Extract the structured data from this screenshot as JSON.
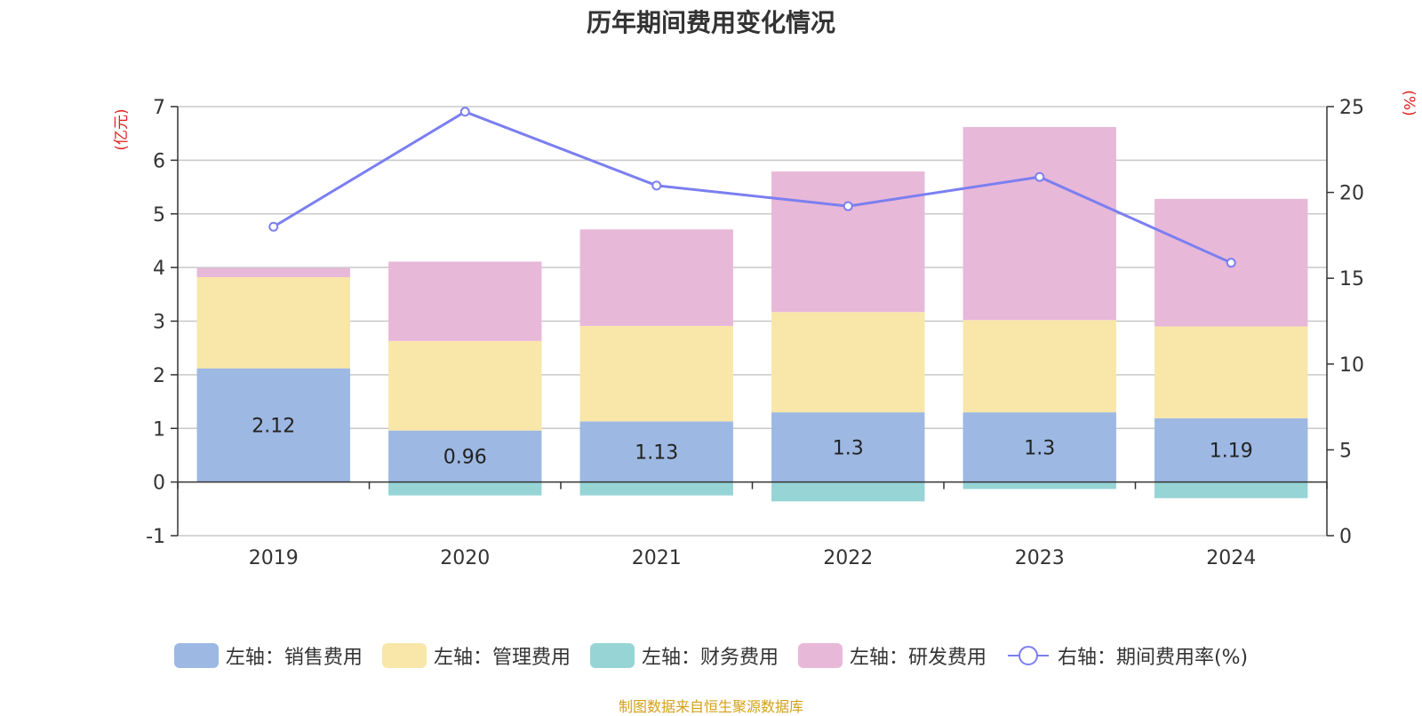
{
  "chart_data": {
    "type": "bar",
    "title": "历年期间费用变化情况",
    "categories": [
      "2019",
      "2020",
      "2021",
      "2022",
      "2023",
      "2024"
    ],
    "left_axis": {
      "unit_label": "(亿元)",
      "ylim": [
        -1,
        7
      ],
      "ticks": [
        -1,
        0,
        1,
        2,
        3,
        4,
        5,
        6,
        7
      ]
    },
    "right_axis": {
      "unit_label": "(%)",
      "ylim": [
        0,
        25
      ],
      "ticks": [
        0,
        5,
        10,
        15,
        20,
        25
      ]
    },
    "series": [
      {
        "name": "左轴：销售费用",
        "type": "bar",
        "axis": "left",
        "stack": "total",
        "color": "#9db8e2",
        "values": [
          2.12,
          0.96,
          1.13,
          1.3,
          1.3,
          1.19
        ],
        "show_labels": true
      },
      {
        "name": "左轴：管理费用",
        "type": "bar",
        "axis": "left",
        "stack": "total",
        "color": "#f8e7a9",
        "values": [
          1.7,
          1.67,
          1.78,
          1.87,
          1.72,
          1.71
        ]
      },
      {
        "name": "左轴：财务费用",
        "type": "bar",
        "axis": "left",
        "stack": "total",
        "color": "#97d4d6",
        "values": [
          0,
          -0.25,
          -0.25,
          -0.36,
          -0.13,
          -0.3
        ]
      },
      {
        "name": "左轴：研发费用",
        "type": "bar",
        "axis": "left",
        "stack": "total",
        "color": "#e8b8d9",
        "values": [
          0.17,
          1.48,
          1.8,
          2.62,
          3.6,
          2.38
        ]
      },
      {
        "name": "右轴：期间费用率(%)",
        "type": "line",
        "axis": "right",
        "color": "#7b7ff0",
        "values": [
          18.0,
          24.7,
          20.4,
          19.2,
          20.9,
          15.9
        ]
      }
    ],
    "legend_position": "bottom",
    "grid": true
  },
  "source_note": "制图数据来自恒生聚源数据库"
}
